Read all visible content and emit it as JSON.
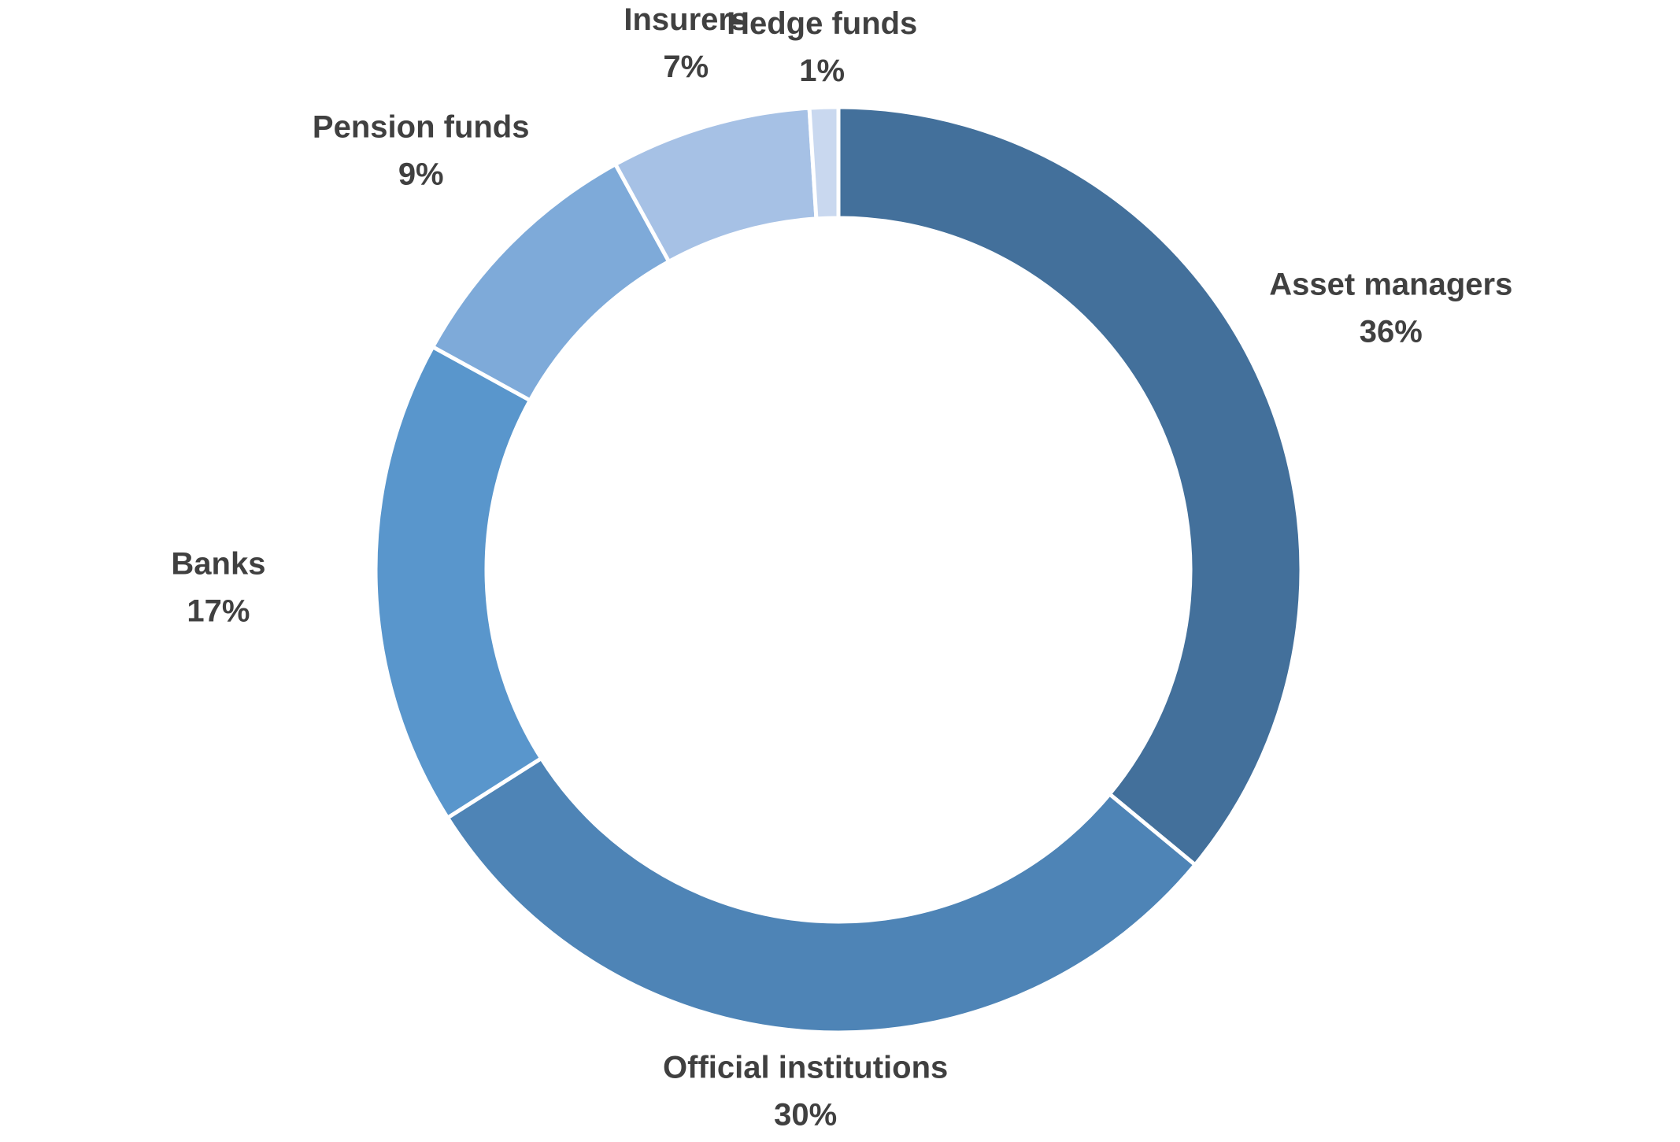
{
  "chart_data": {
    "type": "donut",
    "categories": [
      "Asset managers",
      "Official institutions",
      "Banks",
      "Pension funds",
      "Insurers",
      "Hedge funds"
    ],
    "values": [
      36,
      30,
      17,
      9,
      7,
      1
    ],
    "value_labels": [
      "36%",
      "30%",
      "17%",
      "9%",
      "7%",
      "1%"
    ],
    "colors": [
      "#43709b",
      "#4e84b6",
      "#5996cc",
      "#7eaad9",
      "#a6c1e5",
      "#c9d8ef"
    ]
  }
}
